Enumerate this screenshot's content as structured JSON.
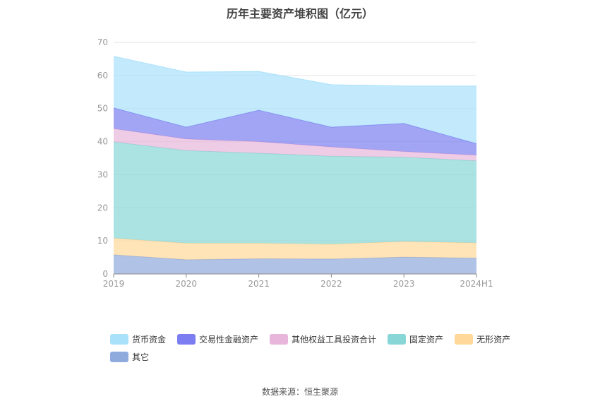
{
  "chart_data": {
    "type": "area",
    "stacked": true,
    "title": "历年主要资产堆积图（亿元）",
    "categories": [
      "2019",
      "2020",
      "2021",
      "2022",
      "2023",
      "2024H1"
    ],
    "ylim": [
      0,
      70
    ],
    "yticks": [
      0,
      10,
      20,
      30,
      40,
      50,
      60,
      70
    ],
    "grid": true,
    "legend_position": "bottom",
    "series": [
      {
        "name": "其它",
        "color": "#8faadc",
        "values": [
          5.8,
          4.3,
          4.6,
          4.5,
          5.1,
          4.8
        ]
      },
      {
        "name": "无形资产",
        "color": "#ffd89a",
        "values": [
          5.0,
          5.0,
          4.7,
          4.5,
          4.7,
          4.6
        ]
      },
      {
        "name": "固定资产",
        "color": "#88d6d6",
        "values": [
          29.1,
          28.0,
          27.2,
          26.6,
          25.5,
          24.8
        ]
      },
      {
        "name": "其他权益工具投资合计",
        "color": "#e8b6da",
        "values": [
          4.0,
          3.5,
          3.5,
          2.8,
          1.7,
          1.7
        ]
      },
      {
        "name": "交易性金融资产",
        "color": "#7b7df0",
        "values": [
          6.3,
          3.6,
          9.5,
          6.0,
          8.5,
          3.5
        ]
      },
      {
        "name": "货币资金",
        "color": "#a9e1fb",
        "values": [
          15.6,
          16.6,
          11.7,
          12.8,
          11.3,
          17.4
        ]
      }
    ]
  },
  "legend": {
    "items": [
      {
        "label": "货币资金",
        "color": "#a9e1fb"
      },
      {
        "label": "交易性金融资产",
        "color": "#7b7df0"
      },
      {
        "label": "其他权益工具投资合计",
        "color": "#e8b6da"
      },
      {
        "label": "固定资产",
        "color": "#88d6d6"
      },
      {
        "label": "无形资产",
        "color": "#ffd89a"
      },
      {
        "label": "其它",
        "color": "#8faadc"
      }
    ]
  },
  "source": "数据来源：恒生聚源"
}
